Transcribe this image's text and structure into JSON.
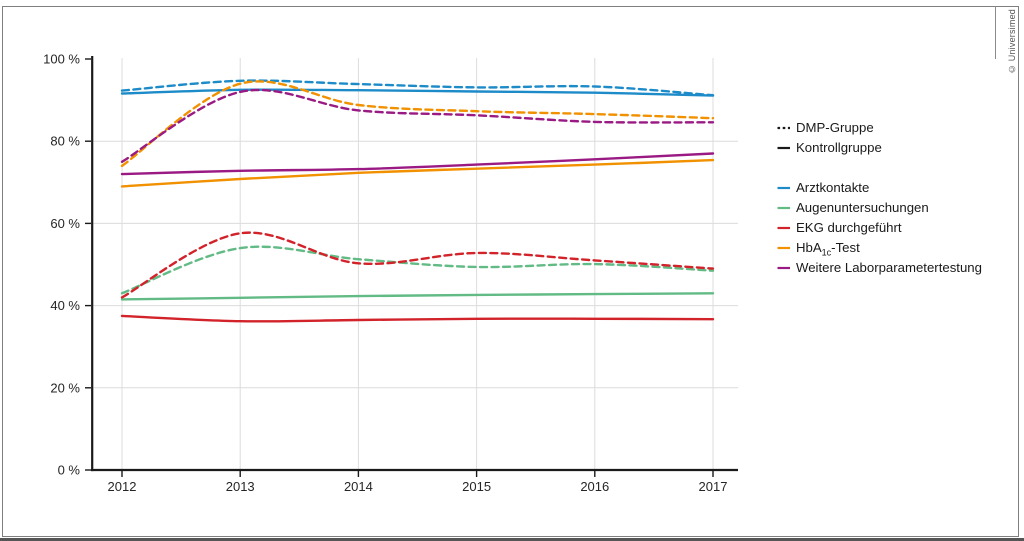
{
  "watermark": "© Universimed",
  "legend": {
    "groups": [
      {
        "label": "DMP-Gruppe",
        "style": "dashed"
      },
      {
        "label": "Kontrollgruppe",
        "style": "solid"
      }
    ],
    "series": [
      {
        "label": "Arztkontakte"
      },
      {
        "label": "Augenuntersuchungen"
      },
      {
        "label": "EKG durchgeführt"
      },
      {
        "label_prefix": "HbA",
        "label_sub": "1c",
        "label_suffix": "-Test"
      },
      {
        "label": "Weitere Laborparametertestung"
      }
    ]
  },
  "axes": {
    "ytick_labels": [
      "0 %",
      "20 %",
      "40 %",
      "60 %",
      "80 %",
      "100 %"
    ],
    "xtick_labels": [
      "2012",
      "2013",
      "2014",
      "2015",
      "2016",
      "2017"
    ]
  },
  "chart_data": {
    "type": "line",
    "x": [
      2012,
      2013,
      2014,
      2015,
      2016,
      2017
    ],
    "ylim": [
      0,
      100
    ],
    "yticks": [
      0,
      20,
      40,
      60,
      80,
      100
    ],
    "grid": true,
    "legend_position": "right",
    "group_styles": {
      "DMP-Gruppe": "dashed",
      "Kontrollgruppe": "solid"
    },
    "series": [
      {
        "name": "Arztkontakte",
        "color": "#1e8bc9",
        "dmp": [
          92.3,
          94.7,
          93.9,
          93.1,
          93.3,
          91.2
        ],
        "kontroll": [
          91.6,
          92.5,
          92.4,
          92.1,
          91.8,
          91.1
        ]
      },
      {
        "name": "Augenuntersuchungen",
        "color": "#62ba85",
        "dmp": [
          43.0,
          54.0,
          51.3,
          49.4,
          50.1,
          48.5
        ],
        "kontroll": [
          41.5,
          41.9,
          42.3,
          42.6,
          42.8,
          43.0
        ]
      },
      {
        "name": "EKG durchgeführt",
        "color": "#d2232a",
        "dmp": [
          42.0,
          57.6,
          50.3,
          52.8,
          51.0,
          49.0
        ],
        "kontroll": [
          37.5,
          36.2,
          36.5,
          36.8,
          36.8,
          36.7
        ]
      },
      {
        "name": "HbA1c-Test",
        "color": "#f19100",
        "dmp": [
          74.0,
          94.0,
          88.8,
          87.3,
          86.6,
          85.6
        ],
        "kontroll": [
          69.0,
          70.8,
          72.3,
          73.3,
          74.3,
          75.4
        ]
      },
      {
        "name": "Weitere Laborparametertestung",
        "color": "#9a1a83",
        "dmp": [
          75.0,
          92.0,
          87.5,
          86.3,
          84.7,
          84.6
        ],
        "kontroll": [
          72.0,
          72.8,
          73.2,
          74.3,
          75.6,
          77.0
        ]
      }
    ]
  }
}
